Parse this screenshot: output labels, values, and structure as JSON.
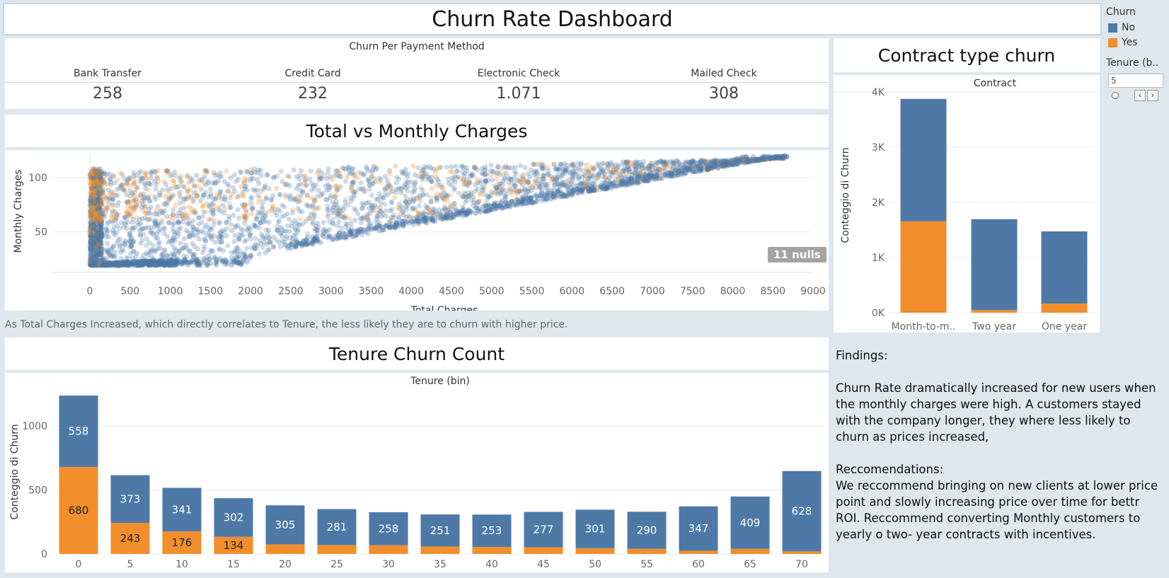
{
  "dashboard_title": "Churn Rate Dashboard",
  "payment": {
    "title": "Churn Per Payment Method",
    "items": [
      {
        "label": "Bank Transfer",
        "value": "258"
      },
      {
        "label": "Credit Card",
        "value": "232"
      },
      {
        "label": "Electronic Check",
        "value": "1.071"
      },
      {
        "label": "Mailed Check",
        "value": "308"
      }
    ]
  },
  "scatter_title": "Total vs Monthly Charges",
  "scatter_caption": "As Total Charges Increased, which directly correlates to Tenure, the less likely they are to churn with higher price.",
  "nulls_label": "11 nulls",
  "contract_title": "Contract type churn",
  "tenure_title": "Tenure Churn Count",
  "legend": {
    "title": "Churn",
    "items": [
      {
        "label": "No",
        "color": "#4e79a7"
      },
      {
        "label": "Yes",
        "color": "#f28e2b"
      }
    ]
  },
  "filter": {
    "title": "Tenure (b..",
    "value": "5"
  },
  "findings": {
    "heading": "Findings:",
    "body": "Churn Rate dramatically increased for new users when the monthly charges were high. A customers stayed with the company longer, they where less likely to churn as prices increased,",
    "rec_heading": "Reccomendations:",
    "rec_body": "We reccommend bringing on new clients at lower price point and slowly increasing price over time for bettr ROI. Reccommend converting Monthly customers to yearly o two- year contracts with incentives."
  },
  "chart_data": [
    {
      "type": "scatter",
      "xlabel": "Total Charges",
      "ylabel": "Monthly Charges",
      "xlim": [
        0,
        9000
      ],
      "ylim": [
        18,
        120
      ],
      "xticks": [
        0,
        500,
        1000,
        1500,
        2000,
        2500,
        3000,
        3500,
        4000,
        4500,
        5000,
        5500,
        6000,
        6500,
        7000,
        7500,
        8000,
        8500,
        9000
      ],
      "yticks": [
        50,
        100
      ],
      "series": [
        {
          "name": "No",
          "color": "#4e79a7"
        },
        {
          "name": "Yes",
          "color": "#f28e2b"
        }
      ],
      "point_count": 7032
    },
    {
      "type": "bar",
      "stacked": true,
      "title": "Contract",
      "ylabel": "Conteggio di Churn",
      "categories": [
        "Month-to-m..",
        "Two year",
        "One year"
      ],
      "series": [
        {
          "name": "No",
          "color": "#4e79a7",
          "values": [
            2220,
            1647,
            1307
          ]
        },
        {
          "name": "Yes",
          "color": "#f28e2b",
          "values": [
            1655,
            48,
            166
          ]
        }
      ],
      "ylim": [
        0,
        4000
      ],
      "yticks": [
        0,
        1000,
        2000,
        3000,
        4000
      ],
      "ytick_labels": [
        "0K",
        "1K",
        "2K",
        "3K",
        "4K"
      ]
    },
    {
      "type": "bar",
      "stacked": true,
      "title": "Tenure (bin)",
      "ylabel": "Conteggio di Churn",
      "categories": [
        "0",
        "5",
        "10",
        "15",
        "20",
        "25",
        "30",
        "35",
        "40",
        "45",
        "50",
        "55",
        "60",
        "65",
        "70"
      ],
      "series": [
        {
          "name": "No",
          "color": "#4e79a7",
          "values": [
            558,
            373,
            341,
            302,
            305,
            281,
            258,
            251,
            253,
            277,
            301,
            290,
            347,
            409,
            628
          ]
        },
        {
          "name": "Yes",
          "color": "#f28e2b",
          "values": [
            680,
            243,
            176,
            134,
            75,
            70,
            68,
            58,
            55,
            52,
            45,
            40,
            25,
            40,
            20
          ]
        }
      ],
      "bar_labels": {
        "No": [
          558,
          373,
          341,
          302,
          305,
          281,
          258,
          251,
          253,
          277,
          301,
          290,
          347,
          409,
          628
        ],
        "Yes": [
          680,
          243,
          176,
          134,
          null,
          null,
          null,
          null,
          null,
          null,
          null,
          null,
          null,
          null,
          null
        ]
      },
      "ylim": [
        0,
        1250
      ],
      "yticks": [
        0,
        500,
        1000
      ]
    }
  ]
}
